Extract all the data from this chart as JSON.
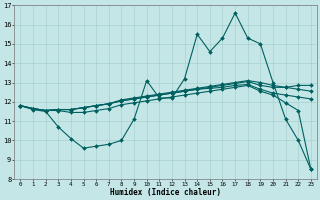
{
  "x": [
    0,
    1,
    2,
    3,
    4,
    5,
    6,
    7,
    8,
    9,
    10,
    11,
    12,
    13,
    14,
    15,
    16,
    17,
    18,
    19,
    20,
    21,
    22,
    23
  ],
  "line_main": [
    11.8,
    11.6,
    11.5,
    10.7,
    10.1,
    9.6,
    9.7,
    9.8,
    10.0,
    11.1,
    13.1,
    12.2,
    12.2,
    13.2,
    15.5,
    14.6,
    15.3,
    16.6,
    15.3,
    15.0,
    13.0,
    11.1,
    10.0,
    8.5
  ],
  "line_upper1": [
    11.8,
    11.65,
    11.55,
    11.6,
    11.6,
    11.7,
    11.8,
    11.9,
    12.05,
    12.15,
    12.25,
    12.35,
    12.45,
    12.55,
    12.65,
    12.75,
    12.85,
    12.95,
    13.05,
    12.85,
    12.75,
    12.75,
    12.85,
    12.85
  ],
  "line_upper2": [
    11.8,
    11.65,
    11.55,
    11.6,
    11.6,
    11.7,
    11.8,
    11.9,
    12.1,
    12.2,
    12.3,
    12.4,
    12.5,
    12.6,
    12.7,
    12.8,
    12.9,
    13.0,
    13.1,
    13.0,
    12.85,
    12.75,
    12.65,
    12.55
  ],
  "line_mid": [
    11.8,
    11.65,
    11.55,
    11.6,
    11.6,
    11.7,
    11.8,
    11.9,
    12.05,
    12.15,
    12.25,
    12.35,
    12.45,
    12.55,
    12.65,
    12.7,
    12.75,
    12.85,
    12.9,
    12.65,
    12.45,
    12.35,
    12.25,
    12.15
  ],
  "line_lower": [
    11.8,
    11.65,
    11.55,
    11.55,
    11.45,
    11.45,
    11.55,
    11.65,
    11.85,
    11.95,
    12.05,
    12.15,
    12.25,
    12.35,
    12.45,
    12.55,
    12.65,
    12.75,
    12.85,
    12.55,
    12.35,
    11.95,
    11.55,
    8.5
  ],
  "xlabel": "Humidex (Indice chaleur)",
  "ylim": [
    8,
    17
  ],
  "xlim": [
    -0.5,
    23.5
  ],
  "yticks": [
    8,
    9,
    10,
    11,
    12,
    13,
    14,
    15,
    16,
    17
  ],
  "xticks": [
    0,
    1,
    2,
    3,
    4,
    5,
    6,
    7,
    8,
    9,
    10,
    11,
    12,
    13,
    14,
    15,
    16,
    17,
    18,
    19,
    20,
    21,
    22,
    23
  ],
  "bg_color": "#c5e6e6",
  "grid_color": "#a8d0d0",
  "line_color": "#006060",
  "markersize": 2.0,
  "linewidth": 0.8
}
